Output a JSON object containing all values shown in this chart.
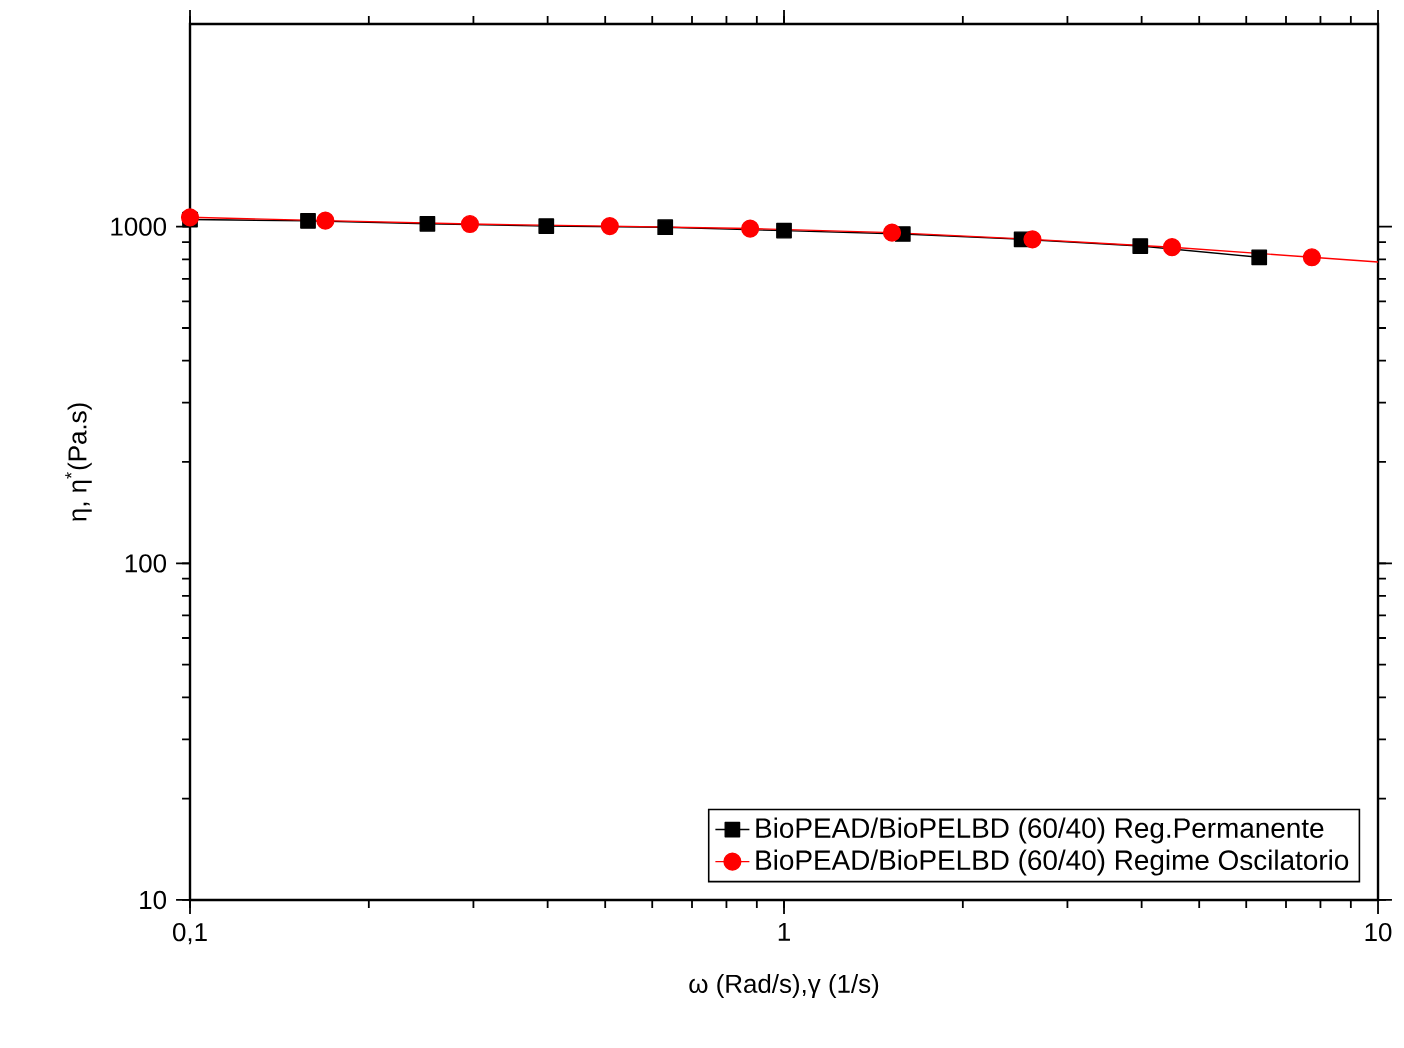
{
  "chart_data": {
    "type": "line",
    "xlabel": "ω (Rad/s),γ (1/s)",
    "ylabel": "η, η$^{*}$(Pa.s)",
    "log": "xy",
    "grid": false,
    "legend": "bottom right",
    "xlim": [
      0.1,
      10
    ],
    "ylim": [
      10,
      4000
    ],
    "xticks": [
      {
        "value": 0.1,
        "label": "0,1"
      },
      1,
      10
    ],
    "yticks": [
      10,
      100,
      1000
    ],
    "series": [
      {
        "name": "BioPEAD/BioPELBD (60/40) Reg.Permanente",
        "color": "#000000",
        "marker": "square",
        "x": [
          0.1,
          0.158,
          0.251,
          0.398,
          0.631,
          1,
          1.585,
          2.512,
          3.98,
          6.31
        ],
        "values": [
          1050,
          1040,
          1020,
          1004,
          996,
          973,
          951,
          917,
          876,
          811
        ]
      },
      {
        "name": "BioPEAD/BioPELBD (60/40) Regime Oscilatorio",
        "color": "#ff0000",
        "marker": "circle",
        "x": [
          0.1,
          0.169,
          0.296,
          0.509,
          0.877,
          1.52,
          2.62,
          4.5,
          7.74
        ],
        "values": [
          1066,
          1042,
          1018,
          1004,
          987,
          960,
          917,
          869,
          811
        ]
      },
      {
        "type": "line",
        "color": "#ff0000",
        "marker": "none",
        "x": [
          7.74,
          10
        ],
        "values": [
          811,
          785
        ]
      }
    ]
  }
}
